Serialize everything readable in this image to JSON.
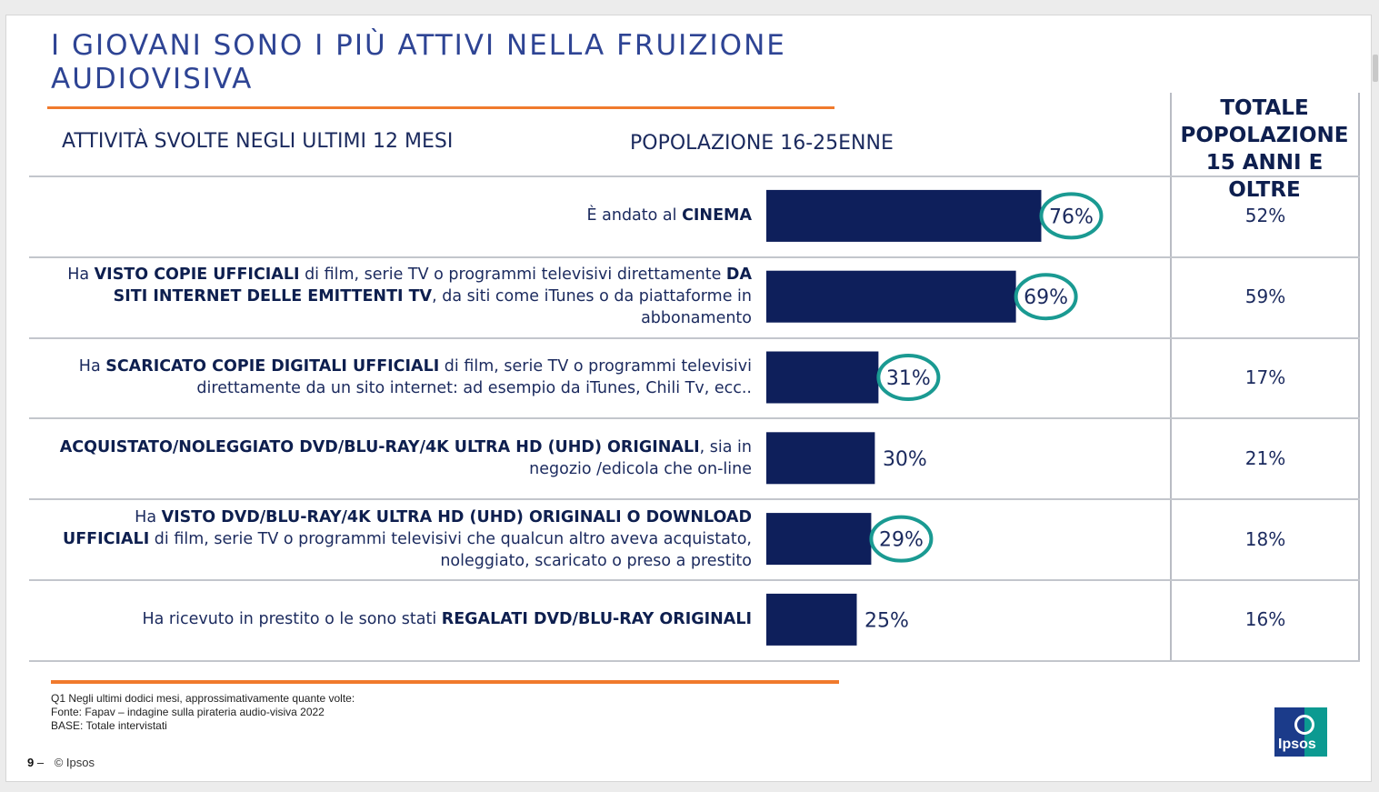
{
  "title_lines": [
    "I GIOVANI SONO I PIÙ ATTIVI NELLA FRUIZIONE",
    "AUDIOVISIVA"
  ],
  "headers": {
    "activities": "ATTIVITÀ SVOLTE NEGLI ULTIMI 12 MESI",
    "youth": "POPOLAZIONE 16-25ENNE",
    "total_lines": [
      "TOTALE",
      "POPOLAZIONE",
      "15 ANNI E OLTRE"
    ]
  },
  "rows": [
    {
      "parts": [
        {
          "t": "È andato al ",
          "b": false
        },
        {
          "t": "CINEMA",
          "b": true
        }
      ],
      "total": "52%"
    },
    {
      "parts": [
        {
          "t": "Ha ",
          "b": false
        },
        {
          "t": "VISTO COPIE UFFICIALI",
          "b": true
        },
        {
          "t": " di film, serie TV o programmi televisivi direttamente ",
          "b": false
        },
        {
          "t": "DA SITI INTERNET DELLE EMITTENTI TV",
          "b": true
        },
        {
          "t": ", da siti come iTunes o da piattaforme in abbonamento",
          "b": false
        }
      ],
      "total": "59%"
    },
    {
      "parts": [
        {
          "t": "Ha ",
          "b": false
        },
        {
          "t": "SCARICATO COPIE DIGITALI UFFICIALI",
          "b": true
        },
        {
          "t": " di film, serie TV o programmi televisivi direttamente da un sito internet: ad esempio da iTunes, Chili Tv, ecc..",
          "b": false
        }
      ],
      "total": "17%"
    },
    {
      "parts": [
        {
          "t": "ACQUISTATO/NOLEGGIATO DVD/BLU-RAY/4K ULTRA HD (UHD) ORIGINALI",
          "b": true
        },
        {
          "t": ", sia in negozio /edicola che on-line",
          "b": false
        }
      ],
      "total": "21%"
    },
    {
      "parts": [
        {
          "t": "Ha ",
          "b": false
        },
        {
          "t": "VISTO DVD/BLU-RAY/4K ULTRA HD (UHD) ORIGINALI O DOWNLOAD UFFICIALI",
          "b": true
        },
        {
          "t": " di film, serie TV o programmi televisivi che qualcun altro aveva acquistato, noleggiato, scaricato o preso a prestito",
          "b": false
        }
      ],
      "total": "18%"
    },
    {
      "parts": [
        {
          "t": "Ha ricevuto in prestito o le sono stati ",
          "b": false
        },
        {
          "t": "REGALATI DVD/BLU-RAY ORIGINALI",
          "b": true
        }
      ],
      "total": "16%"
    }
  ],
  "chart_data": {
    "type": "bar",
    "orientation": "horizontal",
    "categories": [
      "È andato al CINEMA",
      "Ha VISTO COPIE UFFICIALI di film, serie TV o programmi televisivi direttamente DA SITI INTERNET DELLE EMITTENTI TV, da siti come iTunes o da piattaforme in abbonamento",
      "Ha SCARICATO COPIE DIGITALI UFFICIALI di film, serie TV o programmi televisivi direttamente da un sito internet: ad esempio da iTunes, Chili Tv, ecc..",
      "ACQUISTATO/NOLEGGIATO DVD/BLU-RAY/4K ULTRA HD (UHD) ORIGINALI, sia in negozio /edicola che on-line",
      "Ha VISTO DVD/BLU-RAY/4K ULTRA HD (UHD) ORIGINALI O DOWNLOAD UFFICIALI di film, serie TV o programmi televisivi che qualcun altro aveva acquistato, noleggiato, scaricato o preso a prestito",
      "Ha ricevuto in prestito o le sono stati REGALATI DVD/BLU-RAY ORIGINALI"
    ],
    "series": [
      {
        "name": "POPOLAZIONE 16-25ENNE",
        "values": [
          76,
          69,
          31,
          30,
          29,
          25
        ],
        "labels": [
          "76%",
          "69%",
          "31%",
          "30%",
          "29%",
          "25%"
        ],
        "highlighted": [
          true,
          true,
          true,
          false,
          true,
          false
        ]
      }
    ],
    "comparison": {
      "name": "TOTALE POPOLAZIONE 15 ANNI E OLTRE",
      "values": [
        52,
        59,
        17,
        21,
        18,
        16
      ],
      "labels": [
        "52%",
        "59%",
        "17%",
        "21%",
        "18%",
        "16%"
      ]
    },
    "xlim": [
      0,
      100
    ],
    "bar_color": "#0e1f5b",
    "highlight_color": "#1a9a92"
  },
  "footnotes": [
    "Q1 Negli ultimi dodici mesi, approssimativamente quante volte:",
    "Fonte: Fapav – indagine sulla pirateria audio-visiva 2022",
    "BASE: Totale intervistati"
  ],
  "page_number": "9",
  "page_separator": "–",
  "copyright": "© Ipsos",
  "logo_text": "Ipsos",
  "colors": {
    "title": "#2e4494",
    "accent_rule": "#f07a2d",
    "bar": "#0e1f5b",
    "circle": "#1a9a92"
  }
}
